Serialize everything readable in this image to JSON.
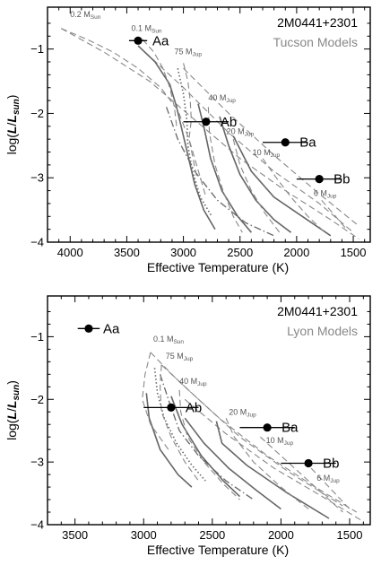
{
  "chart_data": [
    {
      "type": "line",
      "title": "2M0441+2301",
      "subtitle": "Tucson Models",
      "xlabel": "Effective Temperature (K)",
      "ylabel_main": "log(",
      "ylabel_italic": "L",
      "ylabel_slash": "/",
      "ylabel_italic2": "L",
      "ylabel_sub": "sun",
      "ylabel_close": ")",
      "xlim": [
        4200,
        1350
      ],
      "ylim": [
        -4,
        -0.35
      ],
      "xticks": [
        4000,
        3500,
        3000,
        2500,
        2000,
        1500
      ],
      "yticks": [
        -1,
        -2,
        -3,
        -4
      ],
      "xtick_labels": [
        "4000",
        "3500",
        "3000",
        "2500",
        "2000",
        "1500"
      ],
      "ytick_labels": [
        "−1",
        "−2",
        "−3",
        "−4"
      ],
      "tracks": [
        {
          "label": "0.2 M",
          "sub": "Sun",
          "x": 4000,
          "y": -0.5,
          "points": [
            [
              4080,
              -0.68
            ],
            [
              3850,
              -0.85
            ],
            [
              3620,
              -1.05
            ],
            [
              3400,
              -1.3
            ],
            [
              3200,
              -1.6
            ],
            [
              3050,
              -1.95
            ],
            [
              2950,
              -2.4
            ],
            [
              2880,
              -3.0
            ]
          ]
        },
        {
          "label": "0.1 M",
          "sub": "Sun",
          "x": 3460,
          "y": -0.72,
          "points": [
            [
              3360,
              -0.85
            ],
            [
              3260,
              -1.05
            ],
            [
              3180,
              -1.3
            ],
            [
              3120,
              -1.6
            ],
            [
              3080,
              -1.9
            ],
            [
              3060,
              -2.2
            ]
          ]
        },
        {
          "label": "75 M",
          "sub": "Jup",
          "x": 3080,
          "y": -1.08,
          "points": [
            [
              3000,
              -1.22
            ],
            [
              2960,
              -1.5
            ],
            [
              2940,
              -1.8
            ],
            [
              2930,
              -2.1
            ],
            [
              2950,
              -2.4
            ],
            [
              2900,
              -2.7
            ],
            [
              2850,
              -3.0
            ],
            [
              2800,
              -3.3
            ]
          ]
        },
        {
          "label": "40 M",
          "sub": "Jup",
          "x": 2780,
          "y": -1.8,
          "points": [
            [
              2780,
              -1.9
            ],
            [
              2770,
              -2.3
            ],
            [
              2720,
              -2.8
            ],
            [
              2650,
              -3.2
            ],
            [
              2560,
              -3.6
            ],
            [
              2480,
              -3.85
            ]
          ]
        },
        {
          "label": "20 M",
          "sub": "Jup",
          "x": 2620,
          "y": -2.32,
          "points": [
            [
              2560,
              -2.4
            ],
            [
              2500,
              -2.8
            ],
            [
              2400,
              -3.2
            ],
            [
              2280,
              -3.55
            ],
            [
              2150,
              -3.85
            ]
          ]
        },
        {
          "label": "10 M",
          "sub": "Jup",
          "x": 2390,
          "y": -2.65,
          "points": [
            [
              2300,
              -2.7
            ],
            [
              2180,
              -3.0
            ],
            [
              2050,
              -3.3
            ],
            [
              1900,
              -3.6
            ],
            [
              1750,
              -3.85
            ]
          ]
        },
        {
          "label": "6 M",
          "sub": "Jup",
          "x": 1850,
          "y": -3.28,
          "points": [
            [
              1780,
              -3.35
            ],
            [
              1680,
              -3.55
            ],
            [
              1560,
              -3.8
            ]
          ]
        }
      ],
      "isochrones_solid": [
        [
          [
            3400,
            -0.95
          ],
          [
            3250,
            -1.2
          ],
          [
            3120,
            -1.55
          ],
          [
            3060,
            -1.9
          ],
          [
            2980,
            -2.5
          ],
          [
            2900,
            -3.1
          ],
          [
            2820,
            -3.5
          ],
          [
            2720,
            -3.8
          ]
        ],
        [
          [
            2870,
            -1.85
          ],
          [
            2820,
            -2.2
          ],
          [
            2760,
            -2.7
          ],
          [
            2660,
            -3.2
          ],
          [
            2520,
            -3.6
          ],
          [
            2400,
            -3.85
          ]
        ],
        [
          [
            2680,
            -2.05
          ],
          [
            2600,
            -2.5
          ],
          [
            2500,
            -2.95
          ],
          [
            2360,
            -3.35
          ],
          [
            2200,
            -3.65
          ],
          [
            2050,
            -3.85
          ]
        ],
        [
          [
            2560,
            -2.35
          ],
          [
            2400,
            -2.9
          ],
          [
            2200,
            -3.3
          ],
          [
            1950,
            -3.6
          ],
          [
            1700,
            -3.9
          ]
        ]
      ],
      "isochrones_dash": [
        [
          [
            4080,
            -0.68
          ],
          [
            3700,
            -1.05
          ],
          [
            3300,
            -1.5
          ],
          [
            2900,
            -2.1
          ],
          [
            2500,
            -2.7
          ],
          [
            2100,
            -3.2
          ],
          [
            1700,
            -3.65
          ],
          [
            1450,
            -3.95
          ]
        ],
        [
          [
            3400,
            -0.95
          ],
          [
            3000,
            -1.6
          ],
          [
            2600,
            -2.3
          ],
          [
            2200,
            -2.9
          ],
          [
            1800,
            -3.4
          ],
          [
            1500,
            -3.85
          ]
        ],
        [
          [
            3000,
            -1.3
          ],
          [
            2600,
            -2.0
          ],
          [
            2200,
            -2.65
          ],
          [
            1800,
            -3.25
          ],
          [
            1450,
            -3.75
          ]
        ]
      ],
      "isochrone_dot": [
        [
          3050,
          -1.3
        ],
        [
          3000,
          -1.7
        ],
        [
          2970,
          -2.1
        ],
        [
          2960,
          -2.5
        ],
        [
          2920,
          -2.9
        ],
        [
          2850,
          -3.3
        ],
        [
          2750,
          -3.6
        ]
      ],
      "isochrone_dashdot": [
        [
          3150,
          -1.9
        ],
        [
          3050,
          -2.4
        ],
        [
          2900,
          -2.9
        ],
        [
          2700,
          -3.35
        ],
        [
          2450,
          -3.7
        ],
        [
          2200,
          -3.9
        ]
      ],
      "stars": [
        {
          "label": "Aa",
          "teff": 3400,
          "logL": -0.87,
          "err": 80
        },
        {
          "label": "Ab",
          "teff": 2800,
          "logL": -2.13,
          "err": 200
        },
        {
          "label": "Ba",
          "teff": 2100,
          "logL": -2.45,
          "err": 200
        },
        {
          "label": "Bb",
          "teff": 1800,
          "logL": -3.02,
          "err": 200
        }
      ]
    },
    {
      "type": "line",
      "title": "2M0441+2301",
      "subtitle": "Lyon Models",
      "xlabel": "Effective Temperature (K)",
      "ylabel_main": "log(",
      "ylabel_italic": "L",
      "ylabel_slash": "/",
      "ylabel_italic2": "L",
      "ylabel_sub": "sun",
      "ylabel_close": ")",
      "xlim": [
        3700,
        1350
      ],
      "ylim": [
        -4,
        -0.35
      ],
      "xticks": [
        3500,
        3000,
        2500,
        2000,
        1500
      ],
      "yticks": [
        -1,
        -2,
        -3,
        -4
      ],
      "xtick_labels": [
        "3500",
        "3000",
        "2500",
        "2000",
        "1500"
      ],
      "ytick_labels": [
        "−1",
        "−2",
        "−3",
        "−4"
      ],
      "tracks": [
        {
          "label": "0.1 M",
          "sub": "Sun",
          "x": 2930,
          "y": -1.08,
          "points": [
            [
              2950,
              -1.25
            ],
            [
              2990,
              -1.6
            ],
            [
              3010,
              -2.0
            ],
            [
              2950,
              -2.4
            ],
            [
              2820,
              -2.8
            ]
          ]
        },
        {
          "label": "75 M",
          "sub": "Jup",
          "x": 2840,
          "y": -1.35,
          "points": [
            [
              2870,
              -1.45
            ],
            [
              2880,
              -1.8
            ],
            [
              2870,
              -2.2
            ],
            [
              2800,
              -2.6
            ],
            [
              2700,
              -3.0
            ],
            [
              2600,
              -3.3
            ]
          ]
        },
        {
          "label": "40 M",
          "sub": "Jup",
          "x": 2740,
          "y": -1.75,
          "points": [
            [
              2740,
              -1.85
            ],
            [
              2730,
              -2.2
            ],
            [
              2680,
              -2.6
            ],
            [
              2560,
              -3.0
            ],
            [
              2420,
              -3.35
            ],
            [
              2300,
              -3.6
            ]
          ]
        },
        {
          "label": "20 M",
          "sub": "Jup",
          "x": 2380,
          "y": -2.25,
          "points": [
            [
              2400,
              -2.3
            ],
            [
              2340,
              -2.6
            ],
            [
              2200,
              -3.0
            ],
            [
              2000,
              -3.4
            ],
            [
              1800,
              -3.75
            ]
          ]
        },
        {
          "label": "10 M",
          "sub": "Jup",
          "x": 2110,
          "y": -2.7,
          "points": [
            [
              2150,
              -2.6
            ],
            [
              2000,
              -2.9
            ],
            [
              1850,
              -3.2
            ],
            [
              1700,
              -3.5
            ],
            [
              1550,
              -3.8
            ]
          ]
        },
        {
          "label": "6 M",
          "sub": "Jup",
          "x": 1740,
          "y": -3.3,
          "points": [
            [
              1780,
              -3.1
            ],
            [
              1650,
              -3.4
            ],
            [
              1500,
              -3.75
            ]
          ]
        }
      ],
      "isochrones_solid": [
        [
          [
            2980,
            -1.9
          ],
          [
            2960,
            -2.3
          ],
          [
            2880,
            -2.8
          ],
          [
            2750,
            -3.2
          ],
          [
            2650,
            -3.4
          ]
        ],
        [
          [
            2800,
            -1.95
          ],
          [
            2720,
            -2.4
          ],
          [
            2580,
            -2.9
          ],
          [
            2420,
            -3.3
          ],
          [
            2300,
            -3.55
          ]
        ],
        [
          [
            2700,
            -2.3
          ],
          [
            2560,
            -2.7
          ],
          [
            2380,
            -3.1
          ],
          [
            2180,
            -3.45
          ],
          [
            2000,
            -3.75
          ]
        ],
        [
          [
            2470,
            -2.35
          ],
          [
            2430,
            -2.7
          ],
          [
            2250,
            -3.05
          ],
          [
            1950,
            -3.5
          ],
          [
            1650,
            -3.9
          ]
        ]
      ],
      "isochrones_dash": [
        [
          [
            2950,
            -1.25
          ],
          [
            2750,
            -1.7
          ],
          [
            2450,
            -2.3
          ],
          [
            2100,
            -2.9
          ],
          [
            1750,
            -3.4
          ],
          [
            1450,
            -3.8
          ]
        ],
        [
          [
            2870,
            -1.45
          ],
          [
            2600,
            -2.0
          ],
          [
            2300,
            -2.6
          ],
          [
            1950,
            -3.15
          ],
          [
            1550,
            -3.7
          ]
        ],
        [
          [
            2700,
            -2.0
          ],
          [
            2400,
            -2.55
          ],
          [
            2050,
            -3.1
          ],
          [
            1700,
            -3.55
          ],
          [
            1400,
            -3.95
          ]
        ]
      ],
      "isochrone_dot": [
        [
          2920,
          -1.5
        ],
        [
          2900,
          -1.9
        ],
        [
          2850,
          -2.3
        ],
        [
          2760,
          -2.7
        ],
        [
          2650,
          -3.05
        ],
        [
          2550,
          -3.3
        ]
      ],
      "isochrone_dashdot": [
        [
          2880,
          -1.6
        ],
        [
          2820,
          -2.0
        ],
        [
          2740,
          -2.5
        ],
        [
          2600,
          -2.9
        ],
        [
          2400,
          -3.3
        ],
        [
          2200,
          -3.6
        ]
      ],
      "stars": [
        {
          "label": "Aa",
          "teff": 3400,
          "logL": -0.87,
          "err": 80
        },
        {
          "label": "Ab",
          "teff": 2800,
          "logL": -2.13,
          "err": 200
        },
        {
          "label": "Ba",
          "teff": 2100,
          "logL": -2.45,
          "err": 200
        },
        {
          "label": "Bb",
          "teff": 1800,
          "logL": -3.02,
          "err": 200
        }
      ]
    }
  ]
}
